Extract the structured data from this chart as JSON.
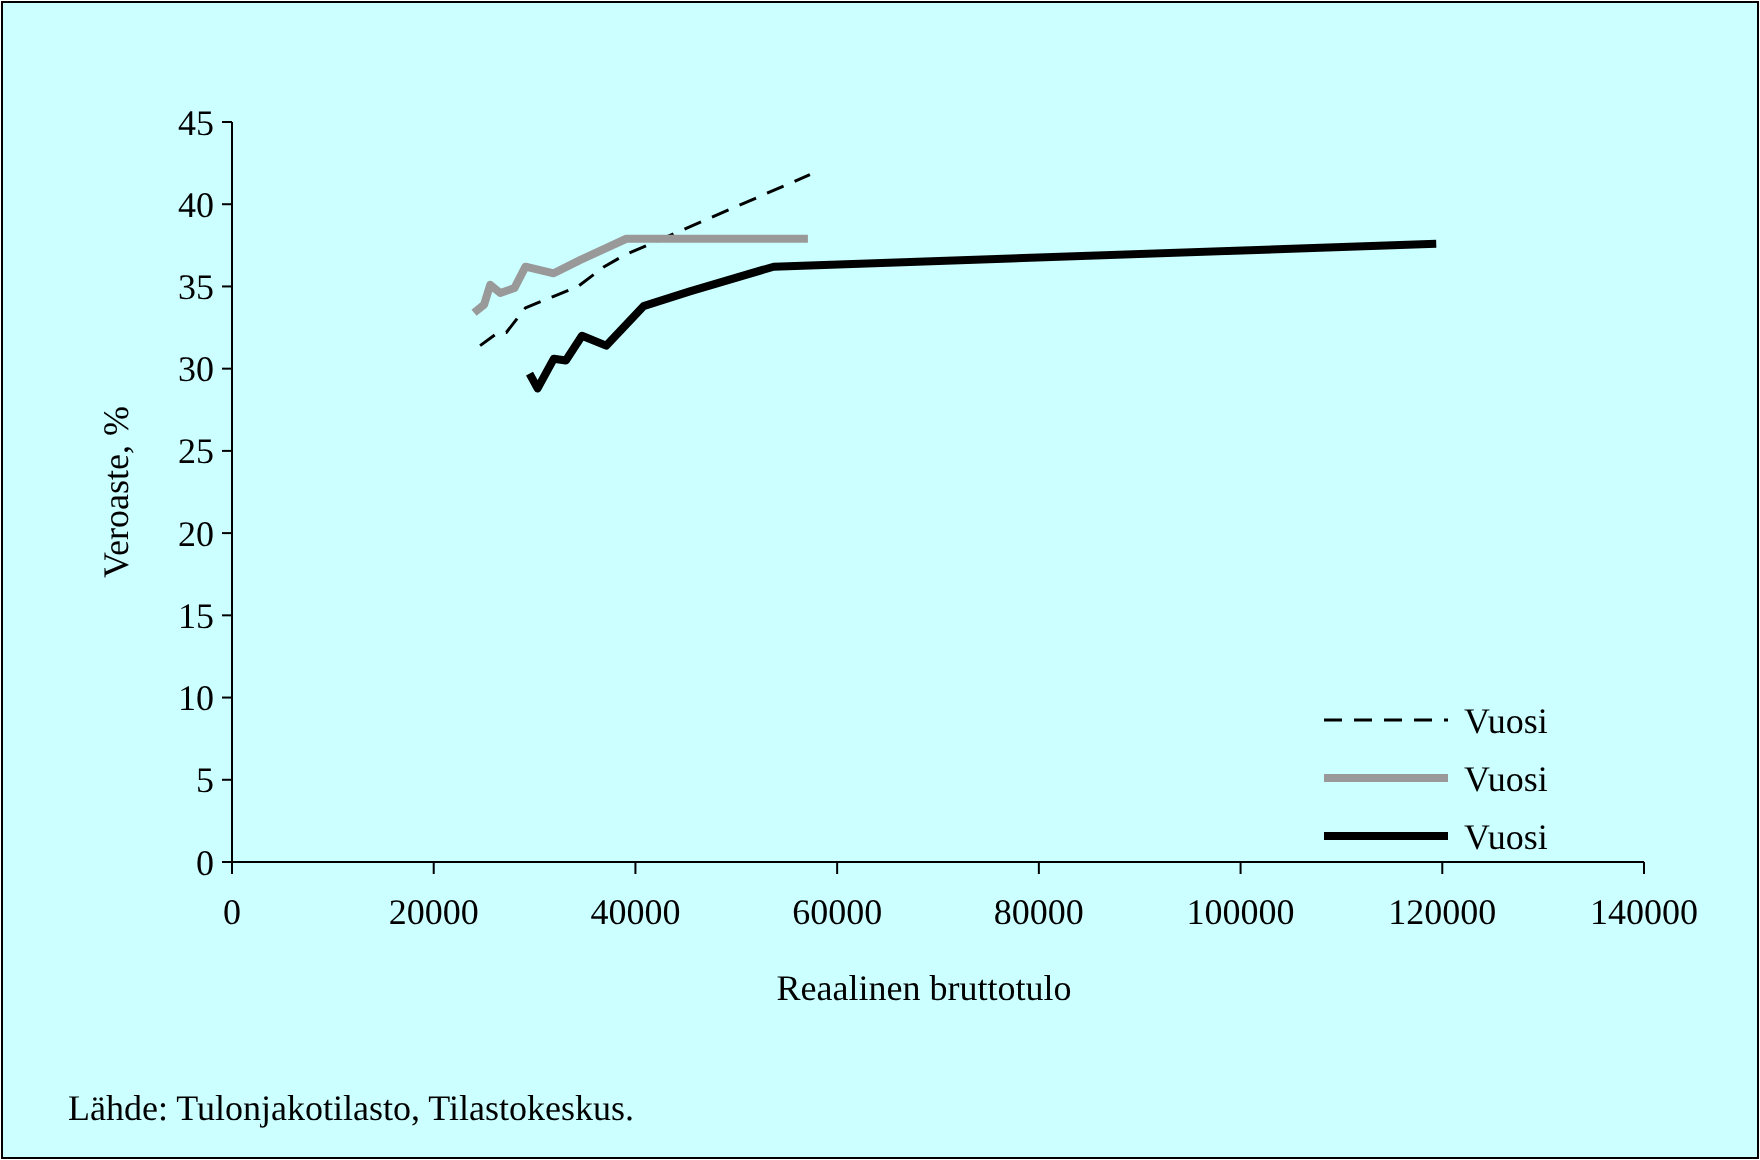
{
  "chart_data": {
    "type": "line",
    "xlabel": "Reaalinen bruttotulo",
    "ylabel": "Veroaste, %",
    "xlim": [
      0,
      140000
    ],
    "xticks": [
      0,
      20000,
      40000,
      60000,
      80000,
      100000,
      120000,
      140000
    ],
    "ylim": [
      0,
      45
    ],
    "yticks": [
      0,
      5,
      10,
      15,
      20,
      25,
      30,
      35,
      40,
      45
    ],
    "grid": false,
    "legend": "bottom right",
    "annotations": [
      "Lähde: Tulonjakotilasto, Tilastokeskus."
    ],
    "series": [
      {
        "name": "Vuosi",
        "color": "#000000",
        "line_style": "dashed",
        "x": [
          24600,
          26400,
          27200,
          29100,
          31900,
          34300,
          36900,
          38900,
          57300
        ],
        "values": [
          31.4,
          32.2,
          32.2,
          33.7,
          34.4,
          35.0,
          36.2,
          36.9,
          41.8
        ]
      },
      {
        "name": "Vuosi",
        "color": "#999999",
        "line_style": "solid",
        "x": [
          24000,
          25000,
          25600,
          26600,
          28000,
          29100,
          31900,
          34500,
          39100,
          57100
        ],
        "values": [
          33.4,
          33.9,
          35.1,
          34.6,
          34.9,
          36.2,
          35.8,
          36.6,
          37.9,
          37.9
        ]
      },
      {
        "name": "Vuosi",
        "color": "#000000",
        "line_style": "solid",
        "x": [
          29500,
          30300,
          31900,
          33100,
          34700,
          37100,
          40800,
          45400,
          53700,
          119400
        ],
        "values": [
          29.7,
          28.8,
          30.6,
          30.5,
          32.0,
          31.4,
          33.8,
          34.7,
          36.2,
          37.6
        ]
      }
    ]
  }
}
